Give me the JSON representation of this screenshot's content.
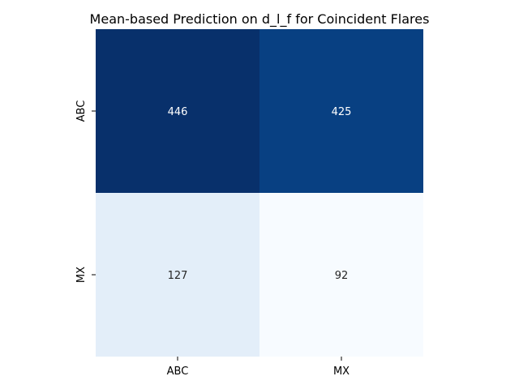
{
  "chart_data": {
    "type": "heatmap",
    "title": "Mean-based Prediction on d_l_f for Coincident Flares",
    "xlabel": "",
    "ylabel": "",
    "x_categories": [
      "ABC",
      "MX"
    ],
    "y_categories": [
      "ABC",
      "MX"
    ],
    "values": [
      [
        446,
        425
      ],
      [
        127,
        92
      ]
    ],
    "colormap": "Blues",
    "colorbar": false,
    "grid": false
  }
}
